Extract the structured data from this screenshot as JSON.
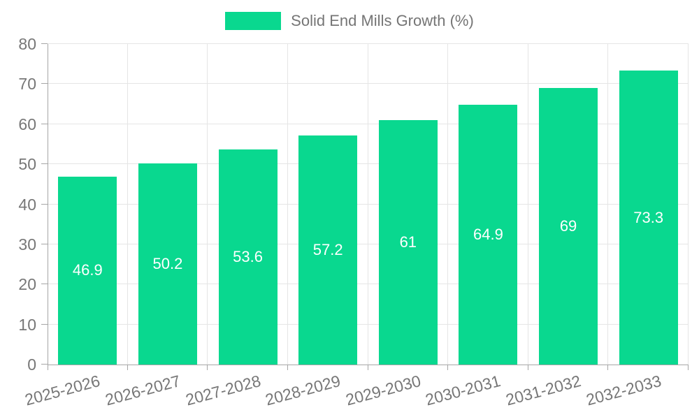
{
  "legend": {
    "label": "Solid End Mills Growth (%)"
  },
  "chart_data": {
    "type": "bar",
    "title": "",
    "categories": [
      "2025-2026",
      "2026-2027",
      "2027-2028",
      "2028-2029",
      "2029-2030",
      "2030-2031",
      "2031-2032",
      "2032-2033"
    ],
    "series": [
      {
        "name": "Solid End Mills Growth (%)",
        "values": [
          46.9,
          50.2,
          53.6,
          57.2,
          61,
          64.9,
          69,
          73.3
        ]
      }
    ],
    "xlabel": "",
    "ylabel": "",
    "ylim": [
      0,
      80
    ],
    "ytick_step": 10,
    "grid": true,
    "legend_position": "top",
    "x_label_rotation_deg": -15,
    "value_labels": "inside-middle",
    "colors": {
      "bar": "#09d88f",
      "value_label": "#ffffff",
      "grid": "#e5e5e5",
      "axis": "#a6a6a6",
      "tick_label": "#777777",
      "legend_text": "#757575",
      "background": "#ffffff"
    }
  }
}
